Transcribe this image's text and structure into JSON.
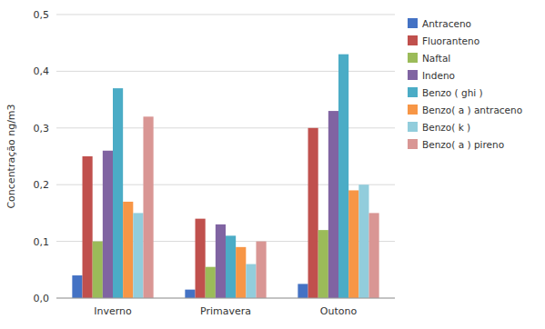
{
  "chart_data": {
    "type": "bar",
    "categories": [
      "Inverno",
      "Primavera",
      "Outono"
    ],
    "series": [
      {
        "name": "Antraceno",
        "color": "#4472C4",
        "values": [
          0.04,
          0.015,
          0.025
        ]
      },
      {
        "name": "Fluoranteno",
        "color": "#C0504D",
        "values": [
          0.25,
          0.14,
          0.3
        ]
      },
      {
        "name": "Naftal",
        "color": "#9BBB59",
        "values": [
          0.1,
          0.055,
          0.12
        ]
      },
      {
        "name": "Indeno",
        "color": "#8064A2",
        "values": [
          0.26,
          0.13,
          0.33
        ]
      },
      {
        "name": "Benzo ( ghi )",
        "color": "#4BACC6",
        "values": [
          0.37,
          0.11,
          0.43
        ]
      },
      {
        "name": "Benzo( a ) antraceno",
        "color": "#F79646",
        "values": [
          0.17,
          0.09,
          0.19
        ]
      },
      {
        "name": "Benzo( k )",
        "color": "#92CDDC",
        "values": [
          0.15,
          0.06,
          0.2
        ]
      },
      {
        "name": "Benzo( a ) pireno",
        "color": "#D99694",
        "values": [
          0.32,
          0.1,
          0.15
        ]
      }
    ],
    "ylabel": "Concentração ng/m3",
    "ylim": [
      0.0,
      0.5
    ],
    "yticks": [
      {
        "value": 0.0,
        "label": "0,0"
      },
      {
        "value": 0.1,
        "label": "0,1"
      },
      {
        "value": 0.2,
        "label": "0,2"
      },
      {
        "value": 0.3,
        "label": "0,3"
      },
      {
        "value": 0.4,
        "label": "0,4"
      },
      {
        "value": 0.5,
        "label": "0,5"
      }
    ],
    "grid": true,
    "legend": "right"
  }
}
